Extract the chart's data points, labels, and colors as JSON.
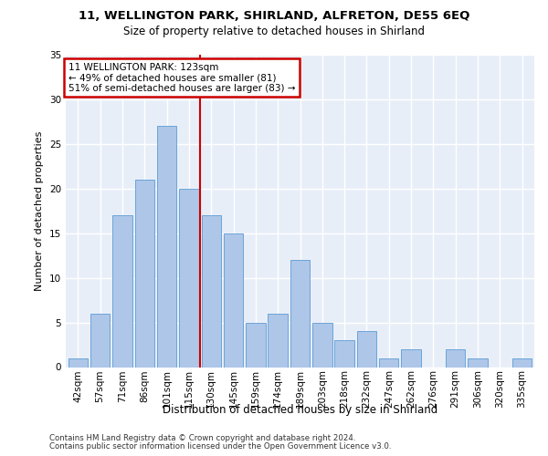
{
  "title1": "11, WELLINGTON PARK, SHIRLAND, ALFRETON, DE55 6EQ",
  "title2": "Size of property relative to detached houses in Shirland",
  "xlabel": "Distribution of detached houses by size in Shirland",
  "ylabel": "Number of detached properties",
  "bin_labels": [
    "42sqm",
    "57sqm",
    "71sqm",
    "86sqm",
    "101sqm",
    "115sqm",
    "130sqm",
    "145sqm",
    "159sqm",
    "174sqm",
    "189sqm",
    "203sqm",
    "218sqm",
    "232sqm",
    "247sqm",
    "262sqm",
    "276sqm",
    "291sqm",
    "306sqm",
    "320sqm",
    "335sqm"
  ],
  "bar_heights": [
    1,
    6,
    17,
    21,
    27,
    20,
    17,
    15,
    5,
    6,
    12,
    5,
    3,
    4,
    1,
    2,
    0,
    2,
    1,
    0,
    1
  ],
  "bar_color": "#aec6e8",
  "bar_edge_color": "#5b9bd5",
  "annotation_text": "11 WELLINGTON PARK: 123sqm\n← 49% of detached houses are smaller (81)\n51% of semi-detached houses are larger (83) →",
  "annotation_box_color": "#ffffff",
  "annotation_box_edge": "#cc0000",
  "vline_color": "#cc0000",
  "footer1": "Contains HM Land Registry data © Crown copyright and database right 2024.",
  "footer2": "Contains public sector information licensed under the Open Government Licence v3.0.",
  "ylim": [
    0,
    35
  ],
  "yticks": [
    0,
    5,
    10,
    15,
    20,
    25,
    30,
    35
  ],
  "bg_color": "#e8eef8",
  "grid_color": "#ffffff",
  "title1_fontsize": 9.5,
  "title2_fontsize": 8.5,
  "ylabel_fontsize": 8.0,
  "xlabel_fontsize": 8.5,
  "tick_fontsize": 7.5,
  "footer_fontsize": 6.2,
  "annot_fontsize": 7.5
}
